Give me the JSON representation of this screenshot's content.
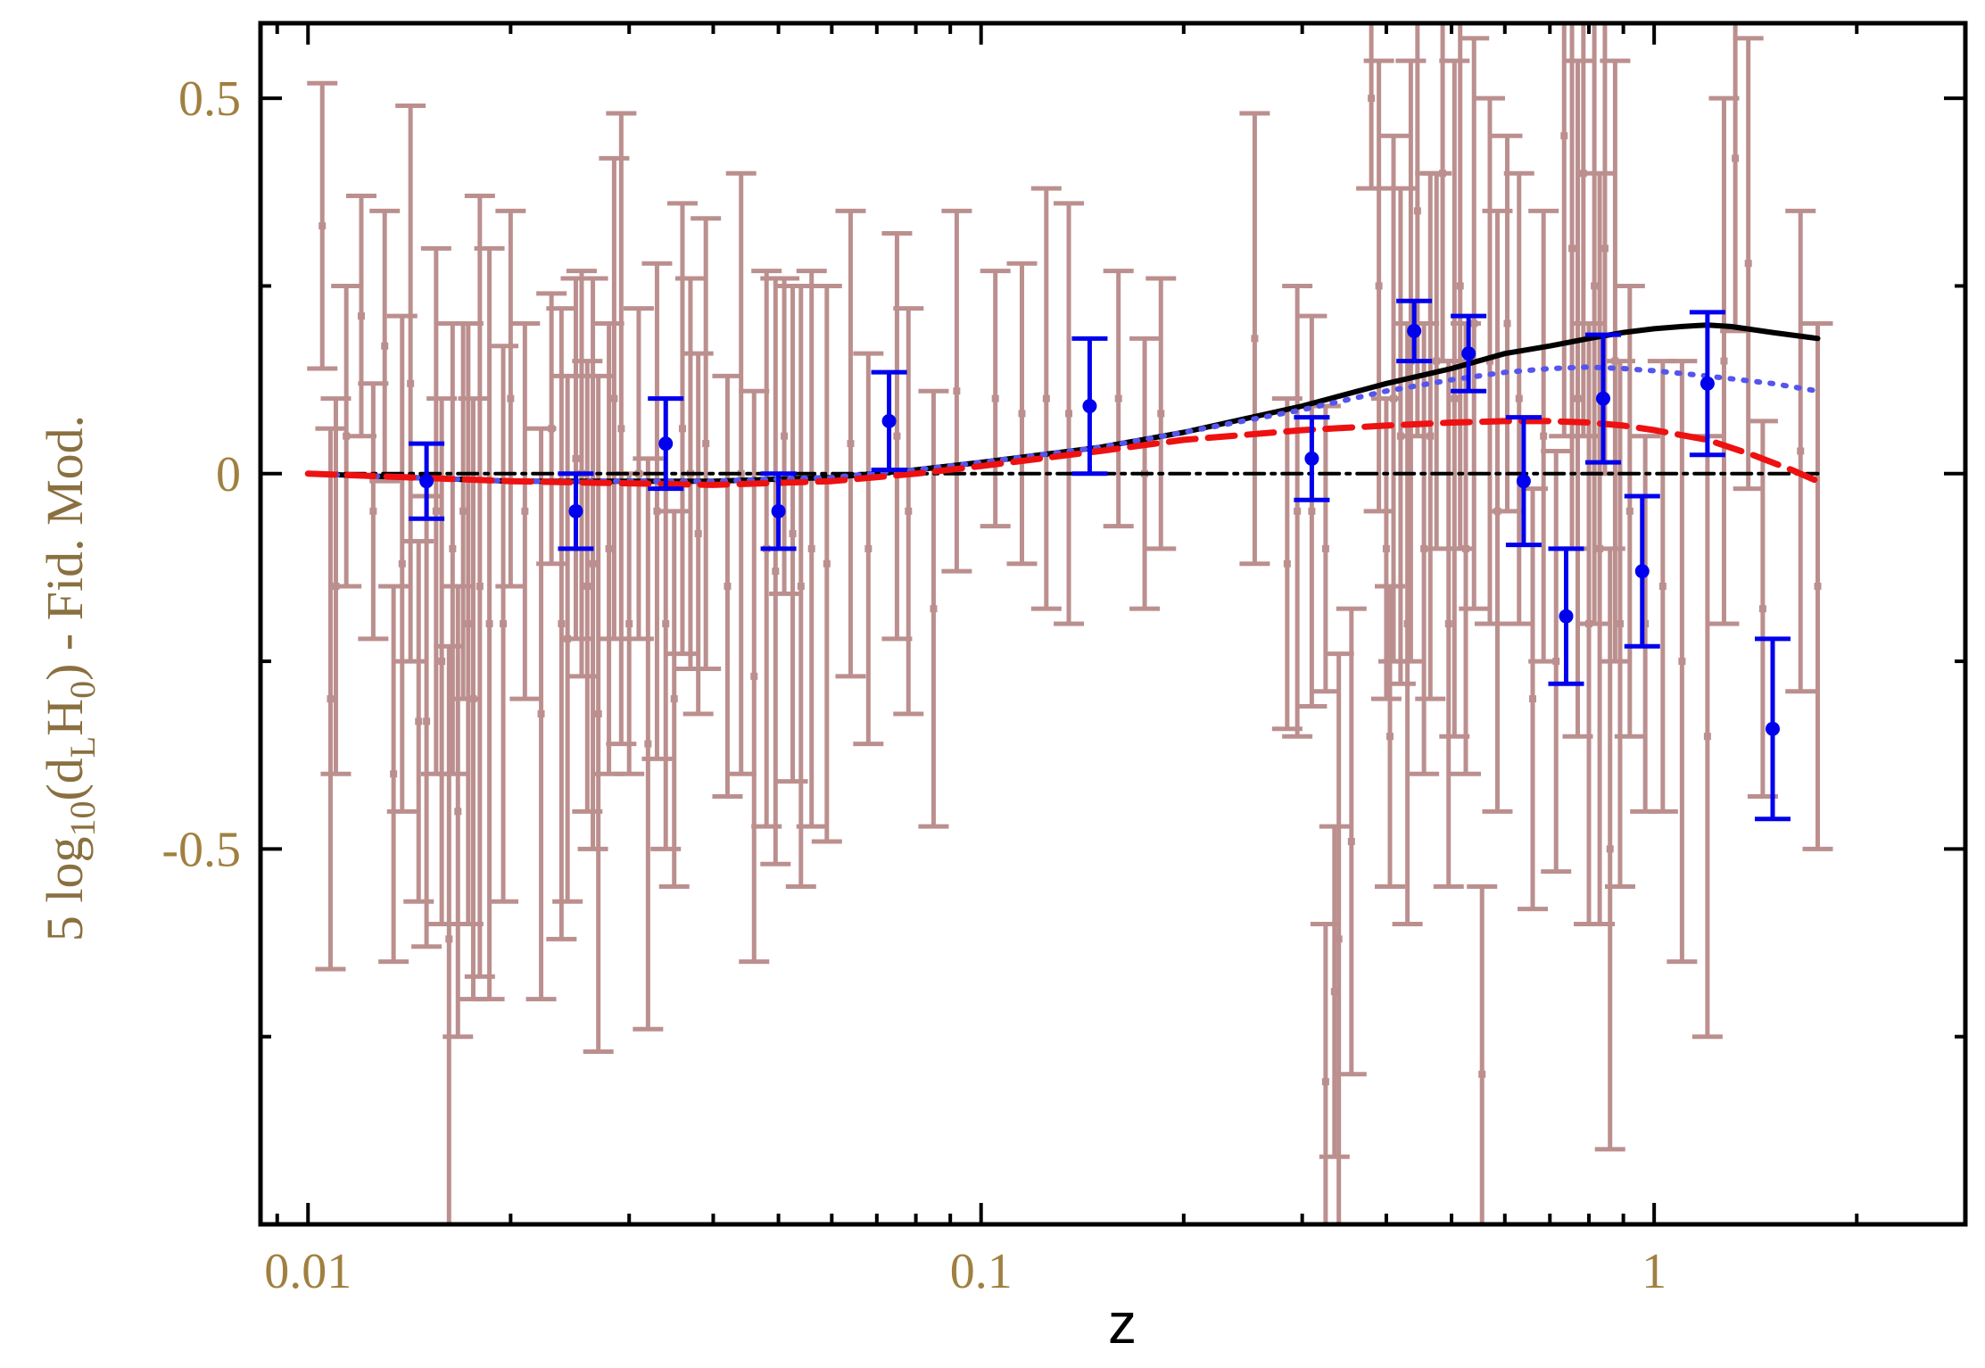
{
  "chart_data": {
    "type": "scatter",
    "title": "",
    "xlabel": "z",
    "ylabel_parts": [
      "5 log",
      "10",
      "(d",
      "L",
      "H",
      "0",
      ") - Fid. Mod."
    ],
    "xscale": "log",
    "xlim": [
      0.0085,
      2.9
    ],
    "ylim": [
      -1.0,
      0.6
    ],
    "x_ticks": [
      0.01,
      0.1,
      1
    ],
    "x_tick_labels": [
      "0.01",
      "0.1",
      "1"
    ],
    "y_ticks": [
      0.5,
      0,
      -0.5
    ],
    "y_tick_labels": [
      "0.5",
      "0",
      "-0.5"
    ],
    "y_minor_ticks": [
      0.25,
      -0.25,
      -0.75
    ],
    "grid": false,
    "colors": {
      "individual": "#bc8f8f",
      "binned": "#0000ee",
      "solid": "#000000",
      "dotted": "#5555ee",
      "dashed": "#ee1111",
      "reference": "#000000",
      "tick_labels": "#a08040"
    },
    "binned_points": [
      {
        "x": 0.015,
        "y": -0.01,
        "err": 0.05
      },
      {
        "x": 0.025,
        "y": -0.05,
        "err": 0.05
      },
      {
        "x": 0.034,
        "y": 0.04,
        "err": 0.06
      },
      {
        "x": 0.05,
        "y": -0.05,
        "err": 0.05
      },
      {
        "x": 0.073,
        "y": 0.07,
        "err": 0.065
      },
      {
        "x": 0.145,
        "y": 0.09,
        "err": 0.09
      },
      {
        "x": 0.31,
        "y": 0.02,
        "err": 0.055
      },
      {
        "x": 0.44,
        "y": 0.19,
        "err": 0.04
      },
      {
        "x": 0.53,
        "y": 0.16,
        "err": 0.05
      },
      {
        "x": 0.64,
        "y": -0.01,
        "err": 0.085
      },
      {
        "x": 0.74,
        "y": -0.19,
        "err": 0.09
      },
      {
        "x": 0.84,
        "y": 0.1,
        "err": 0.085
      },
      {
        "x": 0.96,
        "y": -0.13,
        "err": 0.1
      },
      {
        "x": 1.2,
        "y": 0.12,
        "err": 0.095
      },
      {
        "x": 1.5,
        "y": -0.34,
        "err": 0.12
      }
    ],
    "individual_points": [
      {
        "x": 0.0105,
        "y": 0.33,
        "err": 0.19
      },
      {
        "x": 0.0108,
        "y": -0.3,
        "err": 0.36
      },
      {
        "x": 0.011,
        "y": -0.15,
        "err": 0.25
      },
      {
        "x": 0.0114,
        "y": 0.05,
        "err": 0.2
      },
      {
        "x": 0.012,
        "y": 0.21,
        "err": 0.16
      },
      {
        "x": 0.0125,
        "y": -0.05,
        "err": 0.17
      },
      {
        "x": 0.013,
        "y": 0.17,
        "err": 0.18
      },
      {
        "x": 0.0134,
        "y": -0.4,
        "err": 0.25
      },
      {
        "x": 0.0138,
        "y": -0.12,
        "err": 0.33
      },
      {
        "x": 0.0142,
        "y": 0.12,
        "err": 0.37
      },
      {
        "x": 0.0146,
        "y": -0.33,
        "err": 0.24
      },
      {
        "x": 0.015,
        "y": -0.33,
        "err": 0.3
      },
      {
        "x": 0.0155,
        "y": -0.05,
        "err": 0.35
      },
      {
        "x": 0.0158,
        "y": -0.25,
        "err": 0.35
      },
      {
        "x": 0.0162,
        "y": -0.62,
        "err": 0.39
      },
      {
        "x": 0.0164,
        "y": -0.1,
        "err": 0.3
      },
      {
        "x": 0.0167,
        "y": -0.45,
        "err": 0.3
      },
      {
        "x": 0.017,
        "y": -0.05,
        "err": 0.25
      },
      {
        "x": 0.0173,
        "y": -0.2,
        "err": 0.4
      },
      {
        "x": 0.0176,
        "y": -0.3,
        "err": 0.4
      },
      {
        "x": 0.018,
        "y": -0.15,
        "err": 0.52
      },
      {
        "x": 0.0186,
        "y": -0.2,
        "err": 0.5
      },
      {
        "x": 0.0195,
        "y": -0.2,
        "err": 0.37
      },
      {
        "x": 0.02,
        "y": 0.1,
        "err": 0.25
      },
      {
        "x": 0.021,
        "y": -0.05,
        "err": 0.25
      },
      {
        "x": 0.0222,
        "y": -0.32,
        "err": 0.38
      },
      {
        "x": 0.023,
        "y": 0.06,
        "err": 0.18
      },
      {
        "x": 0.0238,
        "y": -0.2,
        "err": 0.42
      },
      {
        "x": 0.0243,
        "y": -0.22,
        "err": 0.35
      },
      {
        "x": 0.025,
        "y": 0.02,
        "err": 0.24
      },
      {
        "x": 0.0255,
        "y": 0.0,
        "err": 0.27
      },
      {
        "x": 0.026,
        "y": -0.15,
        "err": 0.3
      },
      {
        "x": 0.0265,
        "y": -0.12,
        "err": 0.38
      },
      {
        "x": 0.027,
        "y": -0.32,
        "err": 0.45
      },
      {
        "x": 0.028,
        "y": -0.1,
        "err": 0.3
      },
      {
        "x": 0.0285,
        "y": 0.1,
        "err": 0.32
      },
      {
        "x": 0.0292,
        "y": 0.06,
        "err": 0.42
      },
      {
        "x": 0.03,
        "y": -0.2,
        "err": 0.2
      },
      {
        "x": 0.031,
        "y": 0.0,
        "err": 0.22
      },
      {
        "x": 0.032,
        "y": -0.36,
        "err": 0.38
      },
      {
        "x": 0.033,
        "y": -0.05,
        "err": 0.33
      },
      {
        "x": 0.034,
        "y": -0.2,
        "err": 0.3
      },
      {
        "x": 0.035,
        "y": -0.3,
        "err": 0.25
      },
      {
        "x": 0.036,
        "y": 0.06,
        "err": 0.3
      },
      {
        "x": 0.037,
        "y": 0.0,
        "err": 0.26
      },
      {
        "x": 0.038,
        "y": -0.08,
        "err": 0.24
      },
      {
        "x": 0.039,
        "y": 0.04,
        "err": 0.3
      },
      {
        "x": 0.042,
        "y": -0.15,
        "err": 0.28
      },
      {
        "x": 0.044,
        "y": 0.0,
        "err": 0.4
      },
      {
        "x": 0.046,
        "y": -0.27,
        "err": 0.38
      },
      {
        "x": 0.048,
        "y": -0.1,
        "err": 0.37
      },
      {
        "x": 0.0495,
        "y": -0.13,
        "err": 0.39
      },
      {
        "x": 0.051,
        "y": 0.05,
        "err": 0.21
      },
      {
        "x": 0.0525,
        "y": -0.08,
        "err": 0.33
      },
      {
        "x": 0.054,
        "y": -0.15,
        "err": 0.4
      },
      {
        "x": 0.056,
        "y": -0.1,
        "err": 0.37
      },
      {
        "x": 0.059,
        "y": -0.12,
        "err": 0.37
      },
      {
        "x": 0.064,
        "y": 0.04,
        "err": 0.31
      },
      {
        "x": 0.068,
        "y": -0.1,
        "err": 0.26
      },
      {
        "x": 0.075,
        "y": 0.05,
        "err": 0.27
      },
      {
        "x": 0.078,
        "y": -0.05,
        "err": 0.27
      },
      {
        "x": 0.085,
        "y": -0.18,
        "err": 0.29
      },
      {
        "x": 0.092,
        "y": 0.11,
        "err": 0.24
      },
      {
        "x": 0.105,
        "y": 0.1,
        "err": 0.17
      },
      {
        "x": 0.115,
        "y": 0.08,
        "err": 0.2
      },
      {
        "x": 0.125,
        "y": 0.1,
        "err": 0.28
      },
      {
        "x": 0.135,
        "y": 0.08,
        "err": 0.28
      },
      {
        "x": 0.16,
        "y": 0.1,
        "err": 0.17
      },
      {
        "x": 0.175,
        "y": 0.0,
        "err": 0.18
      },
      {
        "x": 0.185,
        "y": 0.08,
        "err": 0.18
      },
      {
        "x": 0.255,
        "y": 0.18,
        "err": 0.3
      },
      {
        "x": 0.285,
        "y": -0.12,
        "err": 0.22
      },
      {
        "x": 0.295,
        "y": -0.05,
        "err": 0.3
      },
      {
        "x": 0.31,
        "y": -0.05,
        "err": 0.26
      },
      {
        "x": 0.325,
        "y": -0.1,
        "err": 0.19
      },
      {
        "x": 0.325,
        "y": -0.81,
        "err": 0.21
      },
      {
        "x": 0.335,
        "y": -0.69,
        "err": 0.22
      },
      {
        "x": 0.34,
        "y": -0.62,
        "err": 0.38
      },
      {
        "x": 0.355,
        "y": -0.49,
        "err": 0.31
      },
      {
        "x": 0.38,
        "y": 0.5,
        "err": 0.12
      },
      {
        "x": 0.39,
        "y": 0.25,
        "err": 0.3
      },
      {
        "x": 0.4,
        "y": -0.1,
        "err": 0.2
      },
      {
        "x": 0.405,
        "y": -0.35,
        "err": 0.2
      },
      {
        "x": 0.41,
        "y": 0.1,
        "err": 0.35
      },
      {
        "x": 0.42,
        "y": 0.05,
        "err": 0.33
      },
      {
        "x": 0.43,
        "y": -0.2,
        "err": 0.4
      },
      {
        "x": 0.435,
        "y": 0.15,
        "err": 0.4
      },
      {
        "x": 0.445,
        "y": 0.35,
        "err": 0.3
      },
      {
        "x": 0.455,
        "y": -0.1,
        "err": 0.3
      },
      {
        "x": 0.465,
        "y": 0.05,
        "err": 0.35
      },
      {
        "x": 0.475,
        "y": 0.15,
        "err": 0.25
      },
      {
        "x": 0.485,
        "y": 0.4,
        "err": 0.25
      },
      {
        "x": 0.495,
        "y": -0.2,
        "err": 0.35
      },
      {
        "x": 0.505,
        "y": 0.1,
        "err": 0.45
      },
      {
        "x": 0.515,
        "y": 0.25,
        "err": 0.35
      },
      {
        "x": 0.525,
        "y": -0.1,
        "err": 0.3
      },
      {
        "x": 0.54,
        "y": 0.2,
        "err": 0.38
      },
      {
        "x": 0.555,
        "y": -0.8,
        "err": 0.25
      },
      {
        "x": 0.57,
        "y": 0.15,
        "err": 0.35
      },
      {
        "x": 0.585,
        "y": -0.05,
        "err": 0.4
      },
      {
        "x": 0.605,
        "y": 0.2,
        "err": 0.25
      },
      {
        "x": 0.63,
        "y": 0.1,
        "err": 0.3
      },
      {
        "x": 0.66,
        "y": -0.3,
        "err": 0.28
      },
      {
        "x": 0.685,
        "y": 0.05,
        "err": 0.3
      },
      {
        "x": 0.715,
        "y": -0.25,
        "err": 0.28
      },
      {
        "x": 0.735,
        "y": 0.45,
        "err": 0.4
      },
      {
        "x": 0.755,
        "y": 0.3,
        "err": 0.4
      },
      {
        "x": 0.77,
        "y": 0.1,
        "err": 0.45
      },
      {
        "x": 0.785,
        "y": 0.4,
        "err": 0.35
      },
      {
        "x": 0.8,
        "y": -0.2,
        "err": 0.4
      },
      {
        "x": 0.815,
        "y": 0.25,
        "err": 0.45
      },
      {
        "x": 0.83,
        "y": -0.1,
        "err": 0.5
      },
      {
        "x": 0.845,
        "y": 0.3,
        "err": 0.3
      },
      {
        "x": 0.86,
        "y": -0.5,
        "err": 0.4
      },
      {
        "x": 0.875,
        "y": 0.15,
        "err": 0.4
      },
      {
        "x": 0.89,
        "y": -0.2,
        "err": 0.35
      },
      {
        "x": 0.92,
        "y": -0.05,
        "err": 0.3
      },
      {
        "x": 0.97,
        "y": -0.2,
        "err": 0.25
      },
      {
        "x": 1.03,
        "y": -0.15,
        "err": 0.3
      },
      {
        "x": 1.1,
        "y": -0.25,
        "err": 0.4
      },
      {
        "x": 1.2,
        "y": -0.35,
        "err": 0.4
      },
      {
        "x": 1.27,
        "y": 0.15,
        "err": 0.35
      },
      {
        "x": 1.32,
        "y": 0.42,
        "err": 0.23
      },
      {
        "x": 1.38,
        "y": 0.28,
        "err": 0.3
      },
      {
        "x": 1.45,
        "y": -0.18,
        "err": 0.25
      },
      {
        "x": 1.65,
        "y": 0.03,
        "err": 0.32
      },
      {
        "x": 1.75,
        "y": -0.15,
        "err": 0.35
      }
    ],
    "curves": [
      {
        "style": "reference",
        "x": [
          0.01,
          1.75
        ],
        "y": [
          0.0,
          0.0
        ]
      },
      {
        "style": "solid",
        "x": [
          0.01,
          0.02,
          0.04,
          0.06,
          0.08,
          0.1,
          0.15,
          0.2,
          0.3,
          0.4,
          0.5,
          0.6,
          0.7,
          0.8,
          0.9,
          1.0,
          1.1,
          1.2,
          1.3,
          1.5,
          1.75
        ],
        "y": [
          0.0,
          -0.01,
          -0.01,
          -0.005,
          0.005,
          0.015,
          0.035,
          0.055,
          0.09,
          0.12,
          0.14,
          0.16,
          0.17,
          0.18,
          0.188,
          0.193,
          0.196,
          0.198,
          0.196,
          0.188,
          0.18
        ]
      },
      {
        "style": "dotted",
        "x": [
          0.01,
          0.02,
          0.04,
          0.06,
          0.08,
          0.1,
          0.15,
          0.2,
          0.3,
          0.4,
          0.5,
          0.6,
          0.7,
          0.8,
          0.9,
          1.0,
          1.2,
          1.5,
          1.75
        ],
        "y": [
          0.0,
          -0.01,
          -0.01,
          -0.005,
          0.005,
          0.015,
          0.035,
          0.055,
          0.085,
          0.11,
          0.125,
          0.135,
          0.14,
          0.142,
          0.14,
          0.137,
          0.13,
          0.12,
          0.11
        ]
      },
      {
        "style": "dashed",
        "x": [
          0.01,
          0.02,
          0.04,
          0.06,
          0.08,
          0.1,
          0.15,
          0.2,
          0.3,
          0.4,
          0.5,
          0.6,
          0.7,
          0.8,
          0.9,
          1.0,
          1.2,
          1.4,
          1.6,
          1.75
        ],
        "y": [
          0.0,
          -0.01,
          -0.015,
          -0.01,
          0.0,
          0.01,
          0.03,
          0.045,
          0.058,
          0.064,
          0.068,
          0.07,
          0.07,
          0.068,
          0.064,
          0.058,
          0.045,
          0.025,
          0.005,
          -0.01
        ]
      }
    ]
  }
}
